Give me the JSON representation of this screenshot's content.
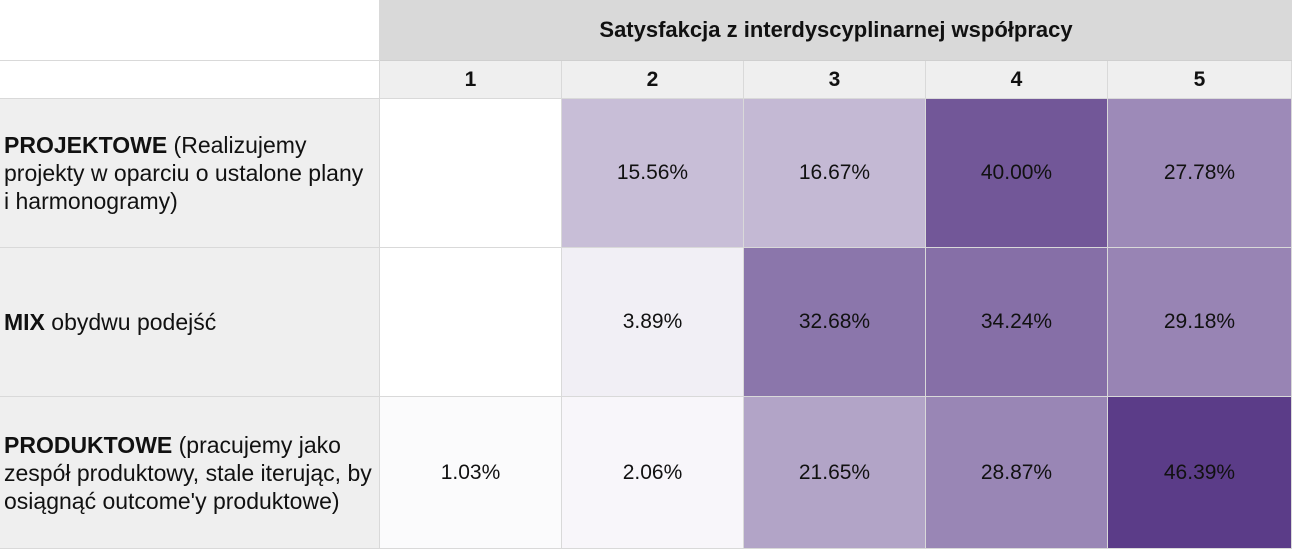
{
  "chart_data": {
    "type": "heatmap",
    "title": "Satysfakcja z interdyscyplinarnej współpracy",
    "columns": [
      "1",
      "2",
      "3",
      "4",
      "5"
    ],
    "rows": [
      {
        "label_bold": "PROJEKTOWE",
        "label_rest": " (Realizujemy projekty w oparciu o ustalone plany i harmonogramy)",
        "values": [
          null,
          15.56,
          16.67,
          40.0,
          27.78
        ],
        "display": [
          "",
          "15.56%",
          "16.67%",
          "40.00%",
          "27.78%"
        ]
      },
      {
        "label_bold": "MIX",
        "label_rest": " obydwu podejść",
        "values": [
          null,
          3.89,
          32.68,
          34.24,
          29.18
        ],
        "display": [
          "",
          "3.89%",
          "32.68%",
          "34.24%",
          "29.18%"
        ]
      },
      {
        "label_bold": "PRODUKTOWE",
        "label_rest": " (pracujemy jako zespół produktowy, stale iterując, by osiągnąć outcome'y produktowe)",
        "values": [
          1.03,
          2.06,
          21.65,
          28.87,
          46.39
        ],
        "display": [
          "1.03%",
          "2.06%",
          "21.65%",
          "28.87%",
          "46.39%"
        ]
      }
    ],
    "value_range": [
      0,
      46.39
    ],
    "colors": {
      "low": "#ffffff",
      "high": "#5b3c88",
      "header_bg": "#d9d9d9",
      "subheader_bg": "#efefef",
      "row_label_bg": "#efefef",
      "grid": "#d9d9d9"
    }
  }
}
